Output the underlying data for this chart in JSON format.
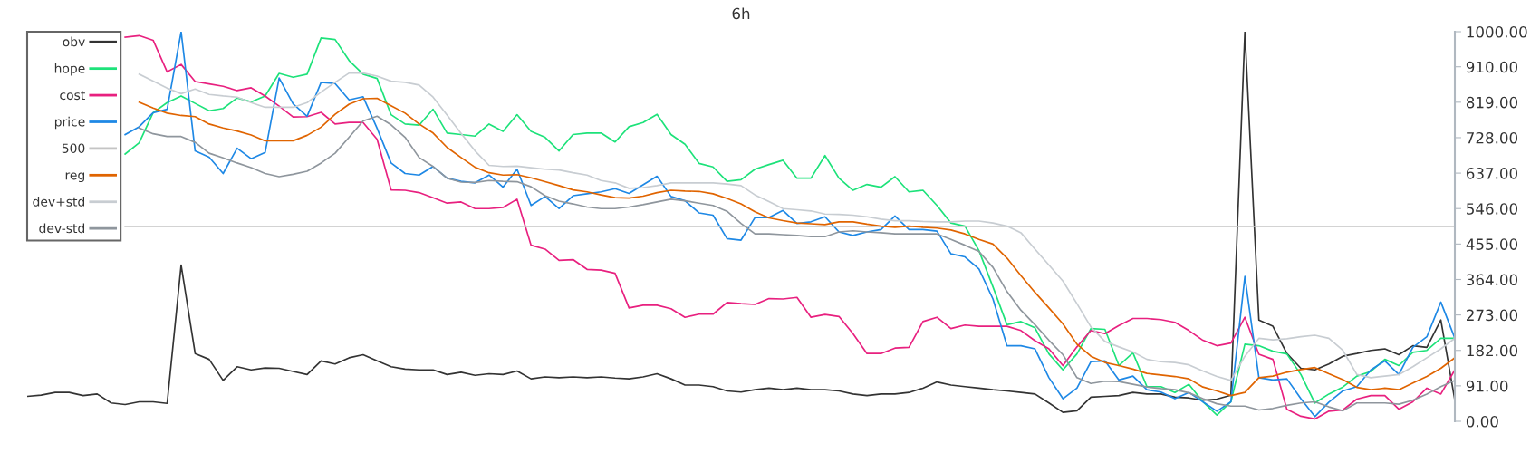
{
  "chart_data": {
    "type": "line",
    "title": "6h",
    "categories": [
      null,
      null,
      null,
      null,
      null,
      null,
      null,
      null,
      null,
      null,
      null,
      null,
      null,
      null,
      null,
      null,
      null,
      null,
      null,
      null,
      null,
      null,
      null,
      null,
      null,
      null,
      null,
      null,
      null,
      null,
      null,
      null,
      null,
      null,
      null,
      null,
      null,
      null,
      null,
      null,
      null,
      null,
      null,
      null,
      null,
      null,
      null,
      null,
      null,
      null,
      null,
      null,
      null,
      null,
      null,
      null,
      null,
      null,
      null,
      null,
      null,
      null,
      null,
      null,
      null,
      null,
      null,
      null,
      null,
      null,
      null,
      null,
      null,
      null,
      null,
      null,
      null,
      null,
      null,
      null,
      null,
      null,
      null,
      null,
      null,
      null,
      null,
      null,
      null,
      null,
      null,
      null,
      null,
      null,
      null,
      null,
      null,
      null,
      null,
      null,
      null,
      null,
      null
    ],
    "ylim": [
      0,
      1000
    ],
    "yticks": [
      {
        "value": 0,
        "label": "0.00"
      },
      {
        "value": 91,
        "label": "91.00"
      },
      {
        "value": 182,
        "label": "182.00"
      },
      {
        "value": 273,
        "label": "273.00"
      },
      {
        "value": 364,
        "label": "364.00"
      },
      {
        "value": 455,
        "label": "455.00"
      },
      {
        "value": 546,
        "label": "546.00"
      },
      {
        "value": 637,
        "label": "637.00"
      },
      {
        "value": 728,
        "label": "728.00"
      },
      {
        "value": 819,
        "label": "819.00"
      },
      {
        "value": 910,
        "label": "910.00"
      },
      {
        "value": 1000,
        "label": "1000.00"
      }
    ],
    "tick_labels": "y",
    "legend": "top left",
    "line_style": "solid",
    "series": [
      {
        "name": "obv",
        "color": "#333333",
        "values": [
          64,
          67,
          74,
          74,
          66,
          70,
          47,
          43,
          50,
          50,
          46,
          401,
          174,
          159,
          105,
          140,
          132,
          137,
          136,
          128,
          120,
          155,
          147,
          163,
          171,
          155,
          140,
          134,
          132,
          132,
          120,
          126,
          118,
          122,
          120,
          129,
          109,
          114,
          112,
          114,
          112,
          114,
          111,
          109,
          114,
          122,
          109,
          93,
          93,
          89,
          78,
          75,
          81,
          85,
          81,
          85,
          81,
          81,
          78,
          70,
          66,
          70,
          70,
          74,
          85,
          101,
          93,
          89,
          85,
          81,
          78,
          74,
          70,
          47,
          23,
          27,
          62,
          64,
          66,
          74,
          70,
          70,
          62,
          60,
          54,
          57,
          67,
          1000,
          260,
          244,
          174,
          136,
          132,
          147,
          167,
          174,
          182,
          186,
          171,
          194,
          190,
          260,
          54
        ]
      },
      {
        "name": "hope",
        "color": "#1de27a",
        "values": [
          null,
          null,
          null,
          null,
          null,
          null,
          null,
          686,
          715,
          792,
          818,
          835,
          816,
          797,
          803,
          830,
          820,
          835,
          893,
          883,
          891,
          984,
          980,
          926,
          891,
          880,
          787,
          763,
          760,
          801,
          740,
          736,
          732,
          763,
          744,
          787,
          744,
          729,
          694,
          736,
          740,
          740,
          717,
          756,
          767,
          788,
          736,
          711,
          662,
          653,
          616,
          620,
          647,
          659,
          670,
          624,
          624,
          682,
          624,
          593,
          608,
          601,
          628,
          589,
          593,
          554,
          509,
          501,
          438,
          345,
          248,
          256,
          240,
          173,
          132,
          173,
          238,
          236,
          143,
          176,
          89,
          89,
          74,
          95,
          50,
          16,
          50,
          198,
          194,
          180,
          173,
          120,
          47,
          70,
          88,
          116,
          128,
          159,
          143,
          177,
          182,
          213,
          213
        ]
      },
      {
        "name": "cost",
        "color": "#e8207f",
        "values": [
          null,
          null,
          null,
          null,
          null,
          null,
          null,
          986,
          990,
          978,
          897,
          916,
          872,
          866,
          860,
          849,
          856,
          835,
          809,
          781,
          782,
          793,
          763,
          767,
          767,
          724,
          594,
          593,
          587,
          574,
          560,
          563,
          546,
          546,
          549,
          570,
          452,
          442,
          413,
          415,
          390,
          388,
          380,
          291,
          298,
          298,
          289,
          267,
          275,
          275,
          305,
          302,
          300,
          315,
          314,
          318,
          267,
          274,
          269,
          225,
          174,
          174,
          188,
          190,
          256,
          267,
          238,
          247,
          244,
          244,
          244,
          233,
          207,
          186,
          143,
          191,
          233,
          225,
          246,
          264,
          264,
          261,
          254,
          233,
          208,
          194,
          201,
          267,
          172,
          159,
          31,
          13,
          6,
          26,
          29,
          57,
          66,
          66,
          31,
          50,
          85,
          70,
          132
        ]
      },
      {
        "name": "price",
        "color": "#1e88e5",
        "values": [
          null,
          null,
          null,
          null,
          null,
          null,
          null,
          736,
          756,
          792,
          801,
          1000,
          694,
          678,
          636,
          701,
          674,
          690,
          881,
          815,
          783,
          870,
          867,
          825,
          833,
          752,
          663,
          636,
          632,
          654,
          624,
          616,
          612,
          632,
          601,
          647,
          554,
          577,
          546,
          579,
          584,
          589,
          597,
          585,
          607,
          629,
          577,
          566,
          535,
          529,
          469,
          465,
          523,
          523,
          541,
          508,
          512,
          525,
          486,
          477,
          486,
          492,
          527,
          492,
          492,
          488,
          430,
          422,
          391,
          314,
          194,
          194,
          186,
          112,
          58,
          85,
          153,
          155,
          106,
          116,
          81,
          75,
          58,
          74,
          50,
          26,
          50,
          372,
          112,
          106,
          109,
          58,
          12,
          49,
          78,
          89,
          132,
          155,
          120,
          190,
          217,
          306,
          213
        ]
      },
      {
        "name": "500",
        "color": "#c4c4c4",
        "values": [
          null,
          null,
          null,
          null,
          null,
          null,
          null,
          500,
          500,
          500,
          500,
          500,
          500,
          500,
          500,
          500,
          500,
          500,
          500,
          500,
          500,
          500,
          500,
          500,
          500,
          500,
          500,
          500,
          500,
          500,
          500,
          500,
          500,
          500,
          500,
          500,
          500,
          500,
          500,
          500,
          500,
          500,
          500,
          500,
          500,
          500,
          500,
          500,
          500,
          500,
          500,
          500,
          500,
          500,
          500,
          500,
          500,
          500,
          500,
          500,
          500,
          500,
          500,
          500,
          500,
          500,
          500,
          500,
          500,
          500,
          500,
          500,
          500,
          500,
          500,
          500,
          500,
          500,
          500,
          500,
          500,
          500,
          500,
          500,
          500,
          500,
          500,
          500,
          500,
          500,
          500,
          500,
          500,
          500,
          500,
          500,
          500,
          500,
          500,
          500,
          500,
          500,
          500
        ]
      },
      {
        "name": "reg",
        "color": "#e06400",
        "values": [
          null,
          null,
          null,
          null,
          null,
          null,
          null,
          null,
          819,
          804,
          791,
          785,
          782,
          763,
          753,
          745,
          735,
          720,
          720,
          720,
          734,
          755,
          788,
          814,
          828,
          829,
          810,
          791,
          763,
          740,
          703,
          677,
          652,
          638,
          632,
          633,
          625,
          615,
          605,
          594,
          589,
          581,
          574,
          573,
          578,
          587,
          593,
          591,
          590,
          584,
          572,
          558,
          538,
          522,
          515,
          509,
          507,
          505,
          512,
          512,
          506,
          501,
          498,
          501,
          498,
          496,
          491,
          481,
          467,
          455,
          419,
          374,
          331,
          291,
          250,
          198,
          167,
          151,
          143,
          134,
          123,
          119,
          115,
          109,
          88,
          78,
          66,
          74,
          112,
          116,
          126,
          133,
          138,
          122,
          107,
          87,
          81,
          85,
          81,
          98,
          115,
          136,
          163
        ]
      },
      {
        "name": "dev+std",
        "color": "#c8cdd2",
        "values": [
          null,
          null,
          null,
          null,
          null,
          null,
          null,
          null,
          891,
          873,
          855,
          841,
          853,
          839,
          835,
          832,
          818,
          806,
          806,
          806,
          818,
          845,
          870,
          894,
          894,
          886,
          873,
          870,
          863,
          832,
          786,
          739,
          694,
          657,
          654,
          655,
          651,
          647,
          645,
          638,
          632,
          618,
          612,
          598,
          600,
          605,
          612,
          612,
          612,
          612,
          609,
          605,
          581,
          564,
          546,
          543,
          540,
          532,
          531,
          529,
          525,
          519,
          515,
          515,
          513,
          512,
          512,
          514,
          514,
          509,
          501,
          484,
          442,
          401,
          360,
          302,
          242,
          205,
          191,
          178,
          159,
          153,
          151,
          145,
          129,
          115,
          105,
          167,
          213,
          209,
          212,
          217,
          221,
          213,
          182,
          120,
          112,
          116,
          120,
          140,
          163,
          186,
          213
        ]
      },
      {
        "name": "dev-std",
        "color": "#8f969d",
        "values": [
          null,
          null,
          null,
          null,
          null,
          null,
          null,
          null,
          753,
          738,
          731,
          731,
          716,
          688,
          676,
          663,
          651,
          636,
          628,
          634,
          642,
          663,
          688,
          729,
          771,
          783,
          761,
          729,
          677,
          654,
          624,
          614,
          613,
          618,
          616,
          615,
          602,
          579,
          565,
          558,
          550,
          546,
          546,
          550,
          556,
          563,
          570,
          566,
          560,
          554,
          539,
          508,
          481,
          481,
          479,
          477,
          474,
          474,
          486,
          489,
          486,
          484,
          481,
          481,
          481,
          481,
          467,
          452,
          436,
          395,
          333,
          285,
          248,
          208,
          171,
          112,
          97,
          103,
          102,
          95,
          88,
          84,
          81,
          73,
          58,
          45,
          39,
          39,
          29,
          33,
          41,
          47,
          50,
          37,
          27,
          47,
          47,
          47,
          44,
          54,
          70,
          89,
          105
        ]
      }
    ]
  }
}
